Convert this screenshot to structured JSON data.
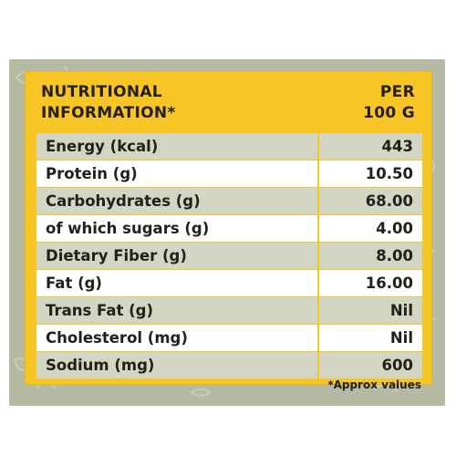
{
  "header": {
    "left_line1": "NUTRITIONAL",
    "left_line2": "INFORMATION*",
    "right_line1": "PER",
    "right_line2": "100 G"
  },
  "rows": [
    {
      "label": "Energy (kcal)",
      "value": "443"
    },
    {
      "label": "Protein (g)",
      "value": "10.50"
    },
    {
      "label": "Carbohydrates (g)",
      "value": "68.00"
    },
    {
      "label": "of which sugars (g)",
      "value": "4.00"
    },
    {
      "label": "Dietary Fiber (g)",
      "value": "8.00"
    },
    {
      "label": "Fat (g)",
      "value": "16.00"
    },
    {
      "label": "Trans Fat (g)",
      "value": "Nil"
    },
    {
      "label": "Cholesterol (mg)",
      "value": "Nil"
    },
    {
      "label": "Sodium (mg)",
      "value": "600"
    }
  ],
  "footnote": "*Approx values",
  "colors": {
    "panel": "#b5bba3",
    "header": "#f7c526",
    "shaded_row": "#d2d6c2",
    "white_row": "#ffffff",
    "text": "#231f1a"
  }
}
